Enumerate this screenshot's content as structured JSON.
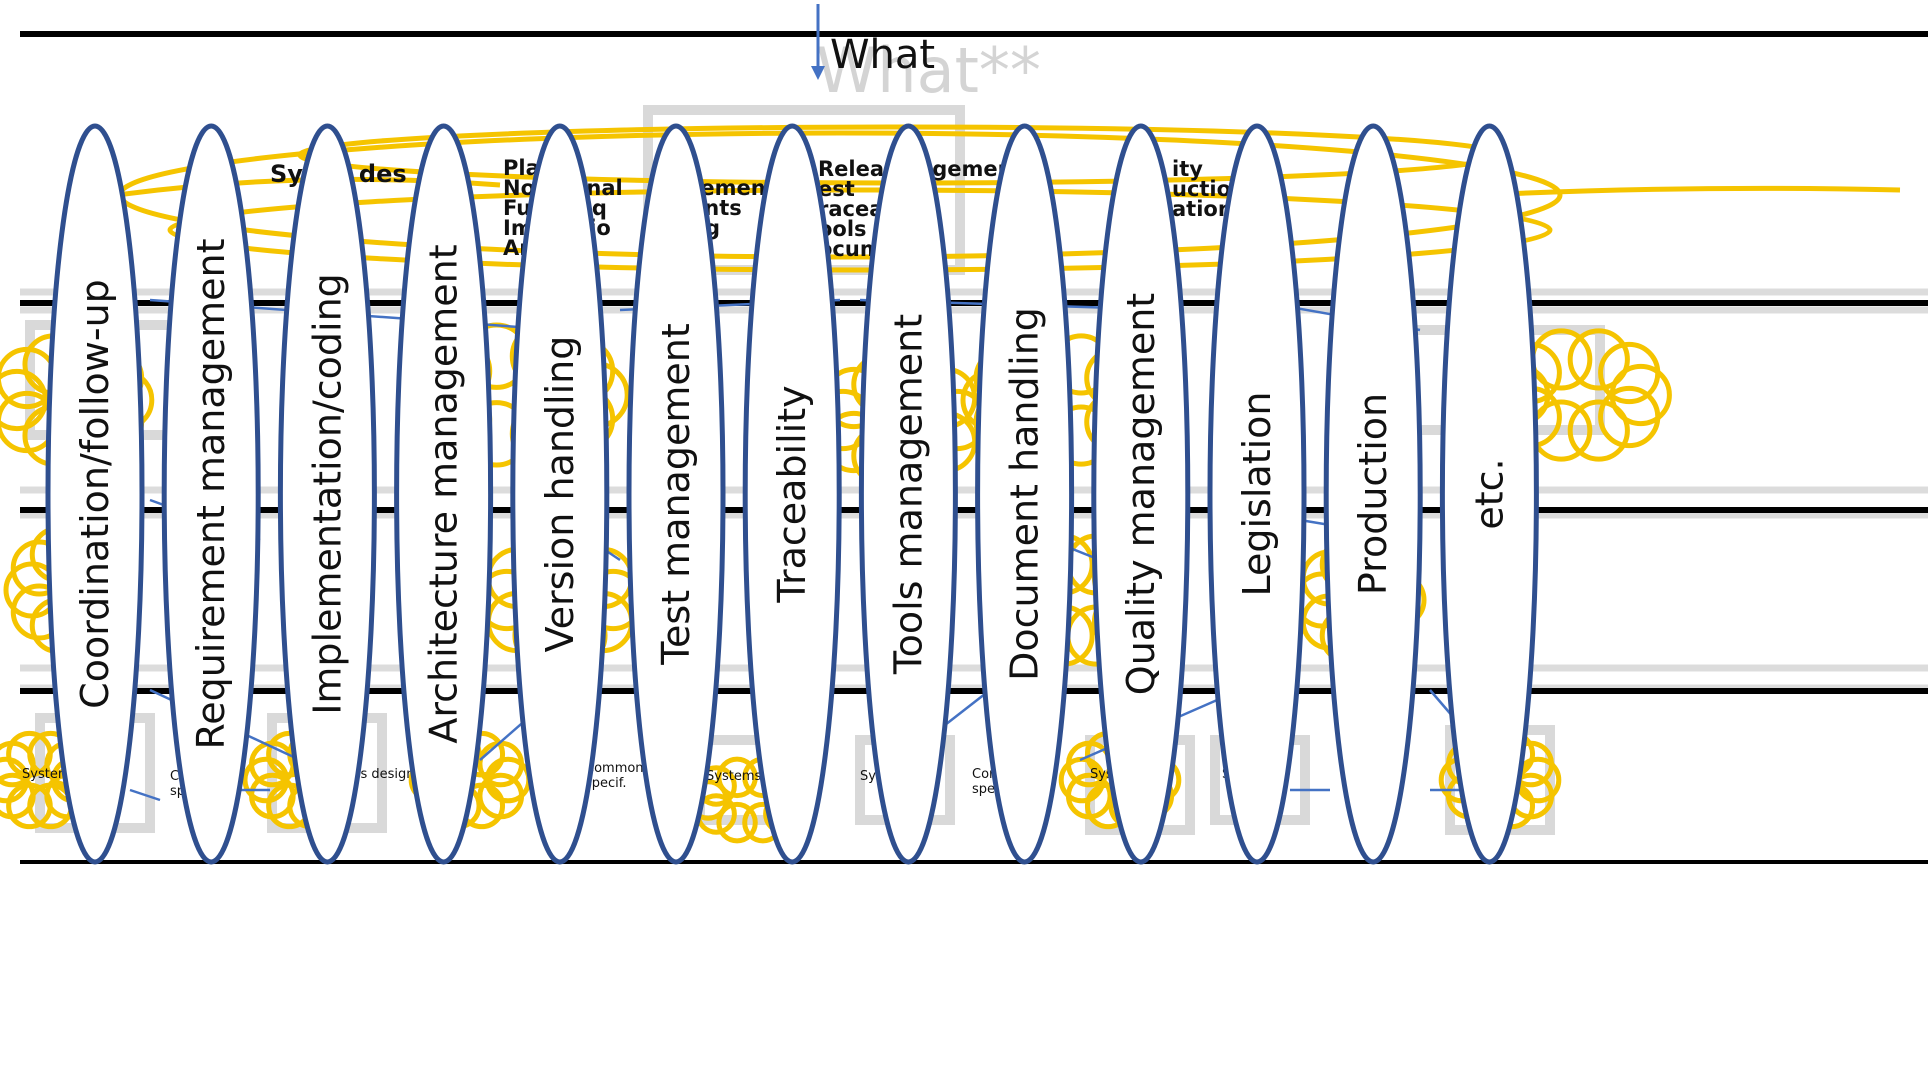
{
  "colors": {
    "ellipse_stroke": "#2f4f8f",
    "cloud_stroke": "#f5c400",
    "arrow": "#4472c4",
    "ghost_text": "#d4d4d4",
    "ghost_box": "#d9d9d9",
    "rule": "#000000"
  },
  "header": {
    "what_label": "What",
    "ghost_what_label": "What**"
  },
  "top_block": {
    "title_fragment": "Sy    ms des",
    "list_col1": [
      "Plan",
      "No   ctional",
      "Fu    al req",
      "Im    ntatio",
      "Ar        ure"
    ],
    "list_col2": [
      "Release   agement",
      "est",
      "raceal",
      "ools",
      "ocum      n"
    ],
    "list_col3": [
      "ity",
      "uction",
      "ation"
    ],
    "list_mid": [
      "remen",
      "ents",
      "ng"
    ]
  },
  "bottom_row_labels": [
    "System",
    "Systems design",
    "Systems des",
    "Systems d",
    "Syste",
    "Sy",
    "gn"
  ],
  "common_spec": [
    "Common",
    "specif."
  ],
  "categories": [
    "Coordination/follow-up",
    "Requirement management",
    "Implementation/coding",
    "Architecture management",
    "Version handling",
    "Test management",
    "Traceability",
    "Tools management",
    "Document handling",
    "Quality management",
    "Legislation",
    "Production",
    "etc."
  ]
}
